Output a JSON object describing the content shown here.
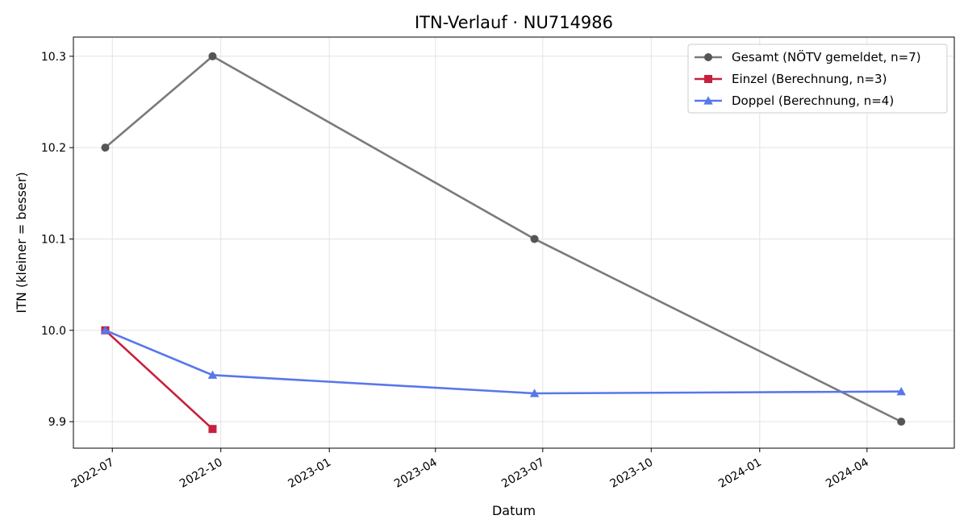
{
  "chart_data": {
    "type": "line",
    "title": "ITN-Verlauf · NU714986",
    "xlabel": "Datum",
    "ylabel": "ITN  (kleiner = besser)",
    "xlim": [
      "2022-05-29",
      "2024-06-14"
    ],
    "ylim": [
      9.871,
      10.321
    ],
    "x_ticks": [
      "2022-07",
      "2022-10",
      "2023-01",
      "2023-04",
      "2023-07",
      "2023-10",
      "2024-01",
      "2024-04"
    ],
    "y_ticks": [
      "9.9",
      "10.0",
      "10.1",
      "10.2",
      "10.3"
    ],
    "grid": true,
    "legend_position": "top-right",
    "series": [
      {
        "name": "Gesamt (NÖTV gemeldet, n=7)",
        "color": "#7a7a7a",
        "marker_color": "#555555",
        "marker": "circle",
        "points": [
          {
            "x": "2022-06-25",
            "y": 10.2
          },
          {
            "x": "2022-09-24",
            "y": 10.3
          },
          {
            "x": "2023-06-24",
            "y": 10.1
          },
          {
            "x": "2024-04-30",
            "y": 9.9
          }
        ]
      },
      {
        "name": "Einzel (Berechnung, n=3)",
        "color": "#c8203c",
        "marker_color": "#c8203c",
        "marker": "square",
        "points": [
          {
            "x": "2022-06-25",
            "y": 10.0
          },
          {
            "x": "2022-09-24",
            "y": 9.892
          }
        ]
      },
      {
        "name": "Doppel (Berechnung, n=4)",
        "color": "#5777ec",
        "marker_color": "#5777ec",
        "marker": "triangle",
        "points": [
          {
            "x": "2022-06-25",
            "y": 10.0
          },
          {
            "x": "2022-09-24",
            "y": 9.951
          },
          {
            "x": "2023-06-24",
            "y": 9.931
          },
          {
            "x": "2024-04-30",
            "y": 9.933
          }
        ]
      }
    ]
  }
}
